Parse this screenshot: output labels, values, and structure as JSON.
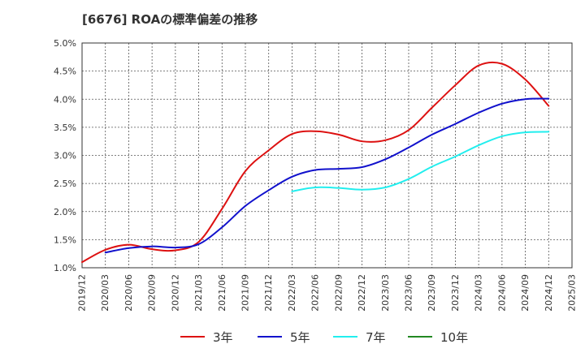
{
  "chart_data": {
    "type": "line",
    "title": "[6676]  ROAの標準偏差の推移",
    "xlabel": "",
    "ylabel": "",
    "x_ticks": [
      "2019/12",
      "2020/03",
      "2020/06",
      "2020/09",
      "2020/12",
      "2021/03",
      "2021/06",
      "2021/09",
      "2021/12",
      "2022/03",
      "2022/06",
      "2022/09",
      "2022/12",
      "2023/03",
      "2023/06",
      "2023/09",
      "2023/12",
      "2024/03",
      "2024/06",
      "2024/09",
      "2024/12",
      "2025/03"
    ],
    "y_ticks": [
      "1.0%",
      "1.5%",
      "2.0%",
      "2.5%",
      "3.0%",
      "3.5%",
      "4.0%",
      "4.5%",
      "5.0%"
    ],
    "ylim": [
      1.0,
      5.0
    ],
    "grid": true,
    "legend_position": "bottom",
    "series": [
      {
        "name": "3年",
        "color": "#dd1111",
        "x": [
          "2019/12",
          "2020/03",
          "2020/06",
          "2020/09",
          "2020/12",
          "2021/03",
          "2021/06",
          "2021/09",
          "2021/12",
          "2022/03",
          "2022/06",
          "2022/09",
          "2022/12",
          "2023/03",
          "2023/06",
          "2023/09",
          "2023/12",
          "2024/03",
          "2024/06",
          "2024/09",
          "2024/12"
        ],
        "values": [
          1.1,
          1.32,
          1.41,
          1.33,
          1.31,
          1.46,
          2.05,
          2.72,
          3.09,
          3.38,
          3.43,
          3.37,
          3.25,
          3.27,
          3.45,
          3.85,
          4.25,
          4.6,
          4.63,
          4.35,
          3.88
        ]
      },
      {
        "name": "5年",
        "color": "#1111cc",
        "x": [
          "2020/03",
          "2020/06",
          "2020/09",
          "2020/12",
          "2021/03",
          "2021/06",
          "2021/09",
          "2021/12",
          "2022/03",
          "2022/06",
          "2022/09",
          "2022/12",
          "2023/03",
          "2023/06",
          "2023/09",
          "2023/12",
          "2024/03",
          "2024/06",
          "2024/09",
          "2024/12"
        ],
        "values": [
          1.27,
          1.35,
          1.38,
          1.36,
          1.42,
          1.72,
          2.1,
          2.38,
          2.62,
          2.74,
          2.76,
          2.79,
          2.93,
          3.14,
          3.37,
          3.56,
          3.76,
          3.92,
          4.0,
          4.01
        ]
      },
      {
        "name": "7年",
        "color": "#22eeee",
        "x": [
          "2022/03",
          "2022/06",
          "2022/09",
          "2022/12",
          "2023/03",
          "2023/06",
          "2023/09",
          "2023/12",
          "2024/03",
          "2024/06",
          "2024/09",
          "2024/12"
        ],
        "values": [
          2.36,
          2.43,
          2.42,
          2.39,
          2.43,
          2.58,
          2.8,
          2.98,
          3.18,
          3.34,
          3.41,
          3.42
        ]
      },
      {
        "name": "10年",
        "color": "#228822",
        "x": [],
        "values": []
      }
    ]
  }
}
